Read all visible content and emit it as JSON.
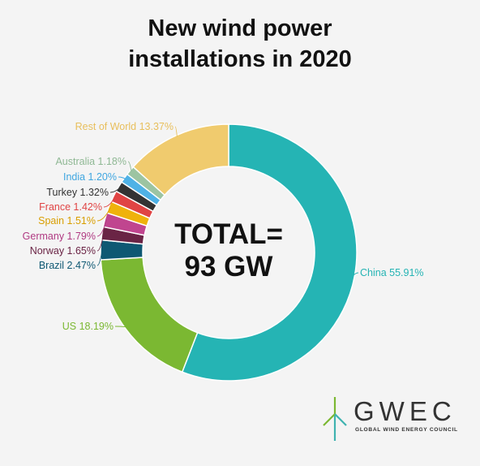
{
  "title_line1": "New wind power",
  "title_line2": "installations in 2020",
  "center_line1": "TOTAL=",
  "center_line2": "93 GW",
  "logo": {
    "word": "GWEC",
    "subtitle": "GLOBAL WIND ENERGY COUNCIL",
    "accent": "#3fb3b0"
  },
  "chart_data": {
    "type": "pie",
    "donut": true,
    "title": "New wind power installations in 2020",
    "unit": "%",
    "slices": [
      {
        "name": "China",
        "value": 55.91,
        "label": "China 55.91%",
        "color": "#25b4b4",
        "label_color": "#25b4b4"
      },
      {
        "name": "US",
        "value": 18.19,
        "label": "US 18.19%",
        "color": "#7bb832",
        "label_color": "#7bb832"
      },
      {
        "name": "Brazil",
        "value": 2.47,
        "label": "Brazil 2.47%",
        "color": "#0e5873",
        "label_color": "#0e5873"
      },
      {
        "name": "Norway",
        "value": 1.65,
        "label": "Norway 1.65%",
        "color": "#6a2445",
        "label_color": "#6a2445"
      },
      {
        "name": "Germany",
        "value": 1.79,
        "label": "Germany 1.79%",
        "color": "#c0458f",
        "label_color": "#b03a82"
      },
      {
        "name": "Spain",
        "value": 1.51,
        "label": "Spain 1.51%",
        "color": "#efb20c",
        "label_color": "#d99e00"
      },
      {
        "name": "France",
        "value": 1.42,
        "label": "France 1.42%",
        "color": "#e04444",
        "label_color": "#e04444"
      },
      {
        "name": "Turkey",
        "value": 1.32,
        "label": "Turkey 1.32%",
        "color": "#333333",
        "label_color": "#333333"
      },
      {
        "name": "India",
        "value": 1.2,
        "label": "India 1.20%",
        "color": "#4fb2e6",
        "label_color": "#3fa6e0"
      },
      {
        "name": "Australia",
        "value": 1.18,
        "label": "Australia 1.18%",
        "color": "#9cc4a2",
        "label_color": "#8fb894"
      },
      {
        "name": "Rest of World",
        "value": 13.37,
        "label": "Rest of World 13.37%",
        "color": "#f0cb6e",
        "label_color": "#e8bf5c"
      }
    ]
  }
}
